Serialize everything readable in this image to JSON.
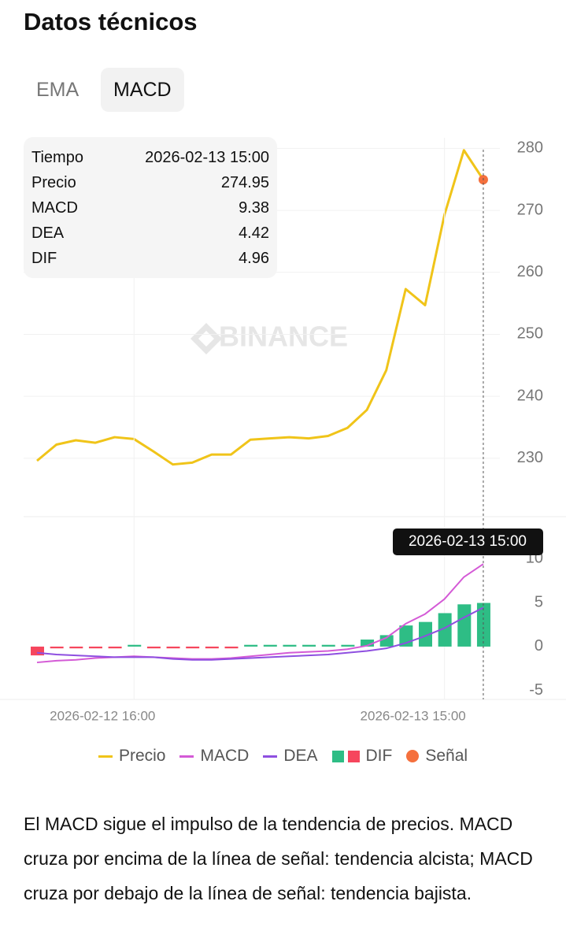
{
  "header": {
    "title": "Datos técnicos"
  },
  "tabs": {
    "items": [
      "EMA",
      "MACD"
    ],
    "selected": 1
  },
  "info": {
    "rows": [
      [
        "Tiempo",
        "2026-02-13 15:00"
      ],
      [
        "Precio",
        274.95
      ],
      [
        "MACD",
        9.38
      ],
      [
        "DEA",
        4.42
      ],
      [
        "DIF",
        4.96
      ]
    ]
  },
  "watermark": "BINANCE",
  "chart_data": [
    {
      "type": "line",
      "series": [
        {
          "name": "Precio",
          "color": "#f0c419",
          "values": [
            229.6,
            232.2,
            232.9,
            232.5,
            233.4,
            233.1,
            231.1,
            229.0,
            229.3,
            230.6,
            230.6,
            233.0,
            233.2,
            233.4,
            233.2,
            233.6,
            234.9,
            237.8,
            244.2,
            257.3,
            254.7,
            269.3,
            279.7,
            274.95
          ]
        }
      ],
      "signal": {
        "name": "Señal",
        "color": "#f5703d"
      },
      "ylim": [
        220.7,
        281.7
      ],
      "yticks": [
        230,
        240,
        250,
        260,
        270,
        280
      ],
      "grid": true
    },
    {
      "type": "combo",
      "categories": [
        null,
        null,
        null,
        null,
        null,
        "2026-02-12 16:00",
        null,
        null,
        null,
        null,
        null,
        null,
        null,
        null,
        null,
        null,
        null,
        null,
        null,
        null,
        null,
        "2026-02-13 15:00",
        null,
        null
      ],
      "series": [
        {
          "name": "MACD",
          "type": "line",
          "color": "#d45ad6",
          "values": [
            -1.8,
            -1.6,
            -1.5,
            -1.3,
            -1.2,
            -1.1,
            -1.2,
            -1.3,
            -1.4,
            -1.4,
            -1.3,
            -1.1,
            -0.9,
            -0.7,
            -0.6,
            -0.5,
            -0.3,
            0.1,
            1.0,
            2.6,
            3.7,
            5.4,
            7.9,
            9.38
          ]
        },
        {
          "name": "DEA",
          "type": "line",
          "color": "#8e4fe0",
          "values": [
            -0.7,
            -0.9,
            -1.0,
            -1.1,
            -1.2,
            -1.2,
            -1.2,
            -1.4,
            -1.5,
            -1.5,
            -1.4,
            -1.3,
            -1.2,
            -1.1,
            -1.0,
            -0.9,
            -0.7,
            -0.5,
            -0.2,
            0.4,
            1.2,
            2.1,
            3.3,
            4.42
          ]
        },
        {
          "name": "DIF",
          "type": "bar",
          "color": "#2ebd85",
          "negative_color": "#f6465d",
          "values": [
            -1.0,
            -0.2,
            -0.2,
            -0.2,
            -0.2,
            0.2,
            -0.2,
            -0.2,
            -0.2,
            -0.2,
            -0.2,
            0.2,
            0.2,
            0.2,
            0.2,
            0.2,
            0.2,
            0.8,
            1.3,
            2.4,
            2.8,
            3.8,
            4.8,
            4.96
          ]
        }
      ],
      "ylim": [
        -6.0,
        14.4
      ],
      "yticks": [
        -5,
        0,
        5,
        10
      ],
      "grid": false
    }
  ],
  "description": "El MACD sigue el impulso de la tendencia de precios. MACD cruza por encima de la línea de señal: tendencia alcista; MACD cruza por debajo de la línea de señal: tendencia bajista."
}
